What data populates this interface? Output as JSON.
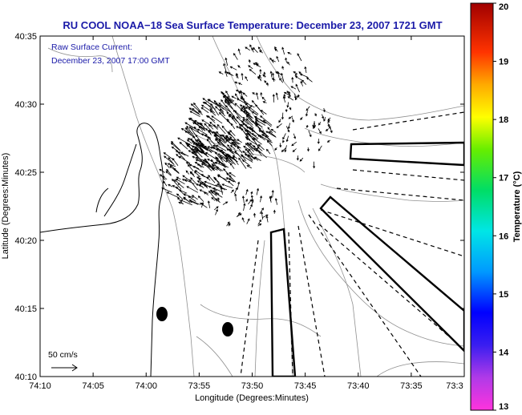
{
  "title": "RU COOL  NOAA−18  Sea Surface Temperature:  December 23, 2007 1721 GMT",
  "current_note": {
    "line1": "Raw Surface Current:",
    "line2": "December 23, 2007 17:00 GMT"
  },
  "scale_label": "50 cm/s",
  "xlabel": "Longitude (Degrees:Minutes)",
  "ylabel": "Latitude (Degrees:Minutes)",
  "x_ticks": [
    "74:10",
    "74:05",
    "74:00",
    "73:55",
    "73:50",
    "73:45",
    "73:40",
    "73:35",
    "73:3"
  ],
  "y_ticks": [
    "40:35",
    "40:30",
    "40:25",
    "40:20",
    "40:15",
    "40:10"
  ],
  "colorbar": {
    "label": "Temperature (°C)",
    "ticks": [
      "20",
      "19",
      "18",
      "17",
      "16",
      "15",
      "14",
      "13"
    ],
    "range": [
      13,
      20
    ],
    "colors": [
      "#ff33dd",
      "#8a2be2",
      "#0000ff",
      "#0099ff",
      "#00e6e6",
      "#00dd66",
      "#66ee00",
      "#ffff00",
      "#ffaa00",
      "#ff3300",
      "#a00000"
    ]
  }
}
